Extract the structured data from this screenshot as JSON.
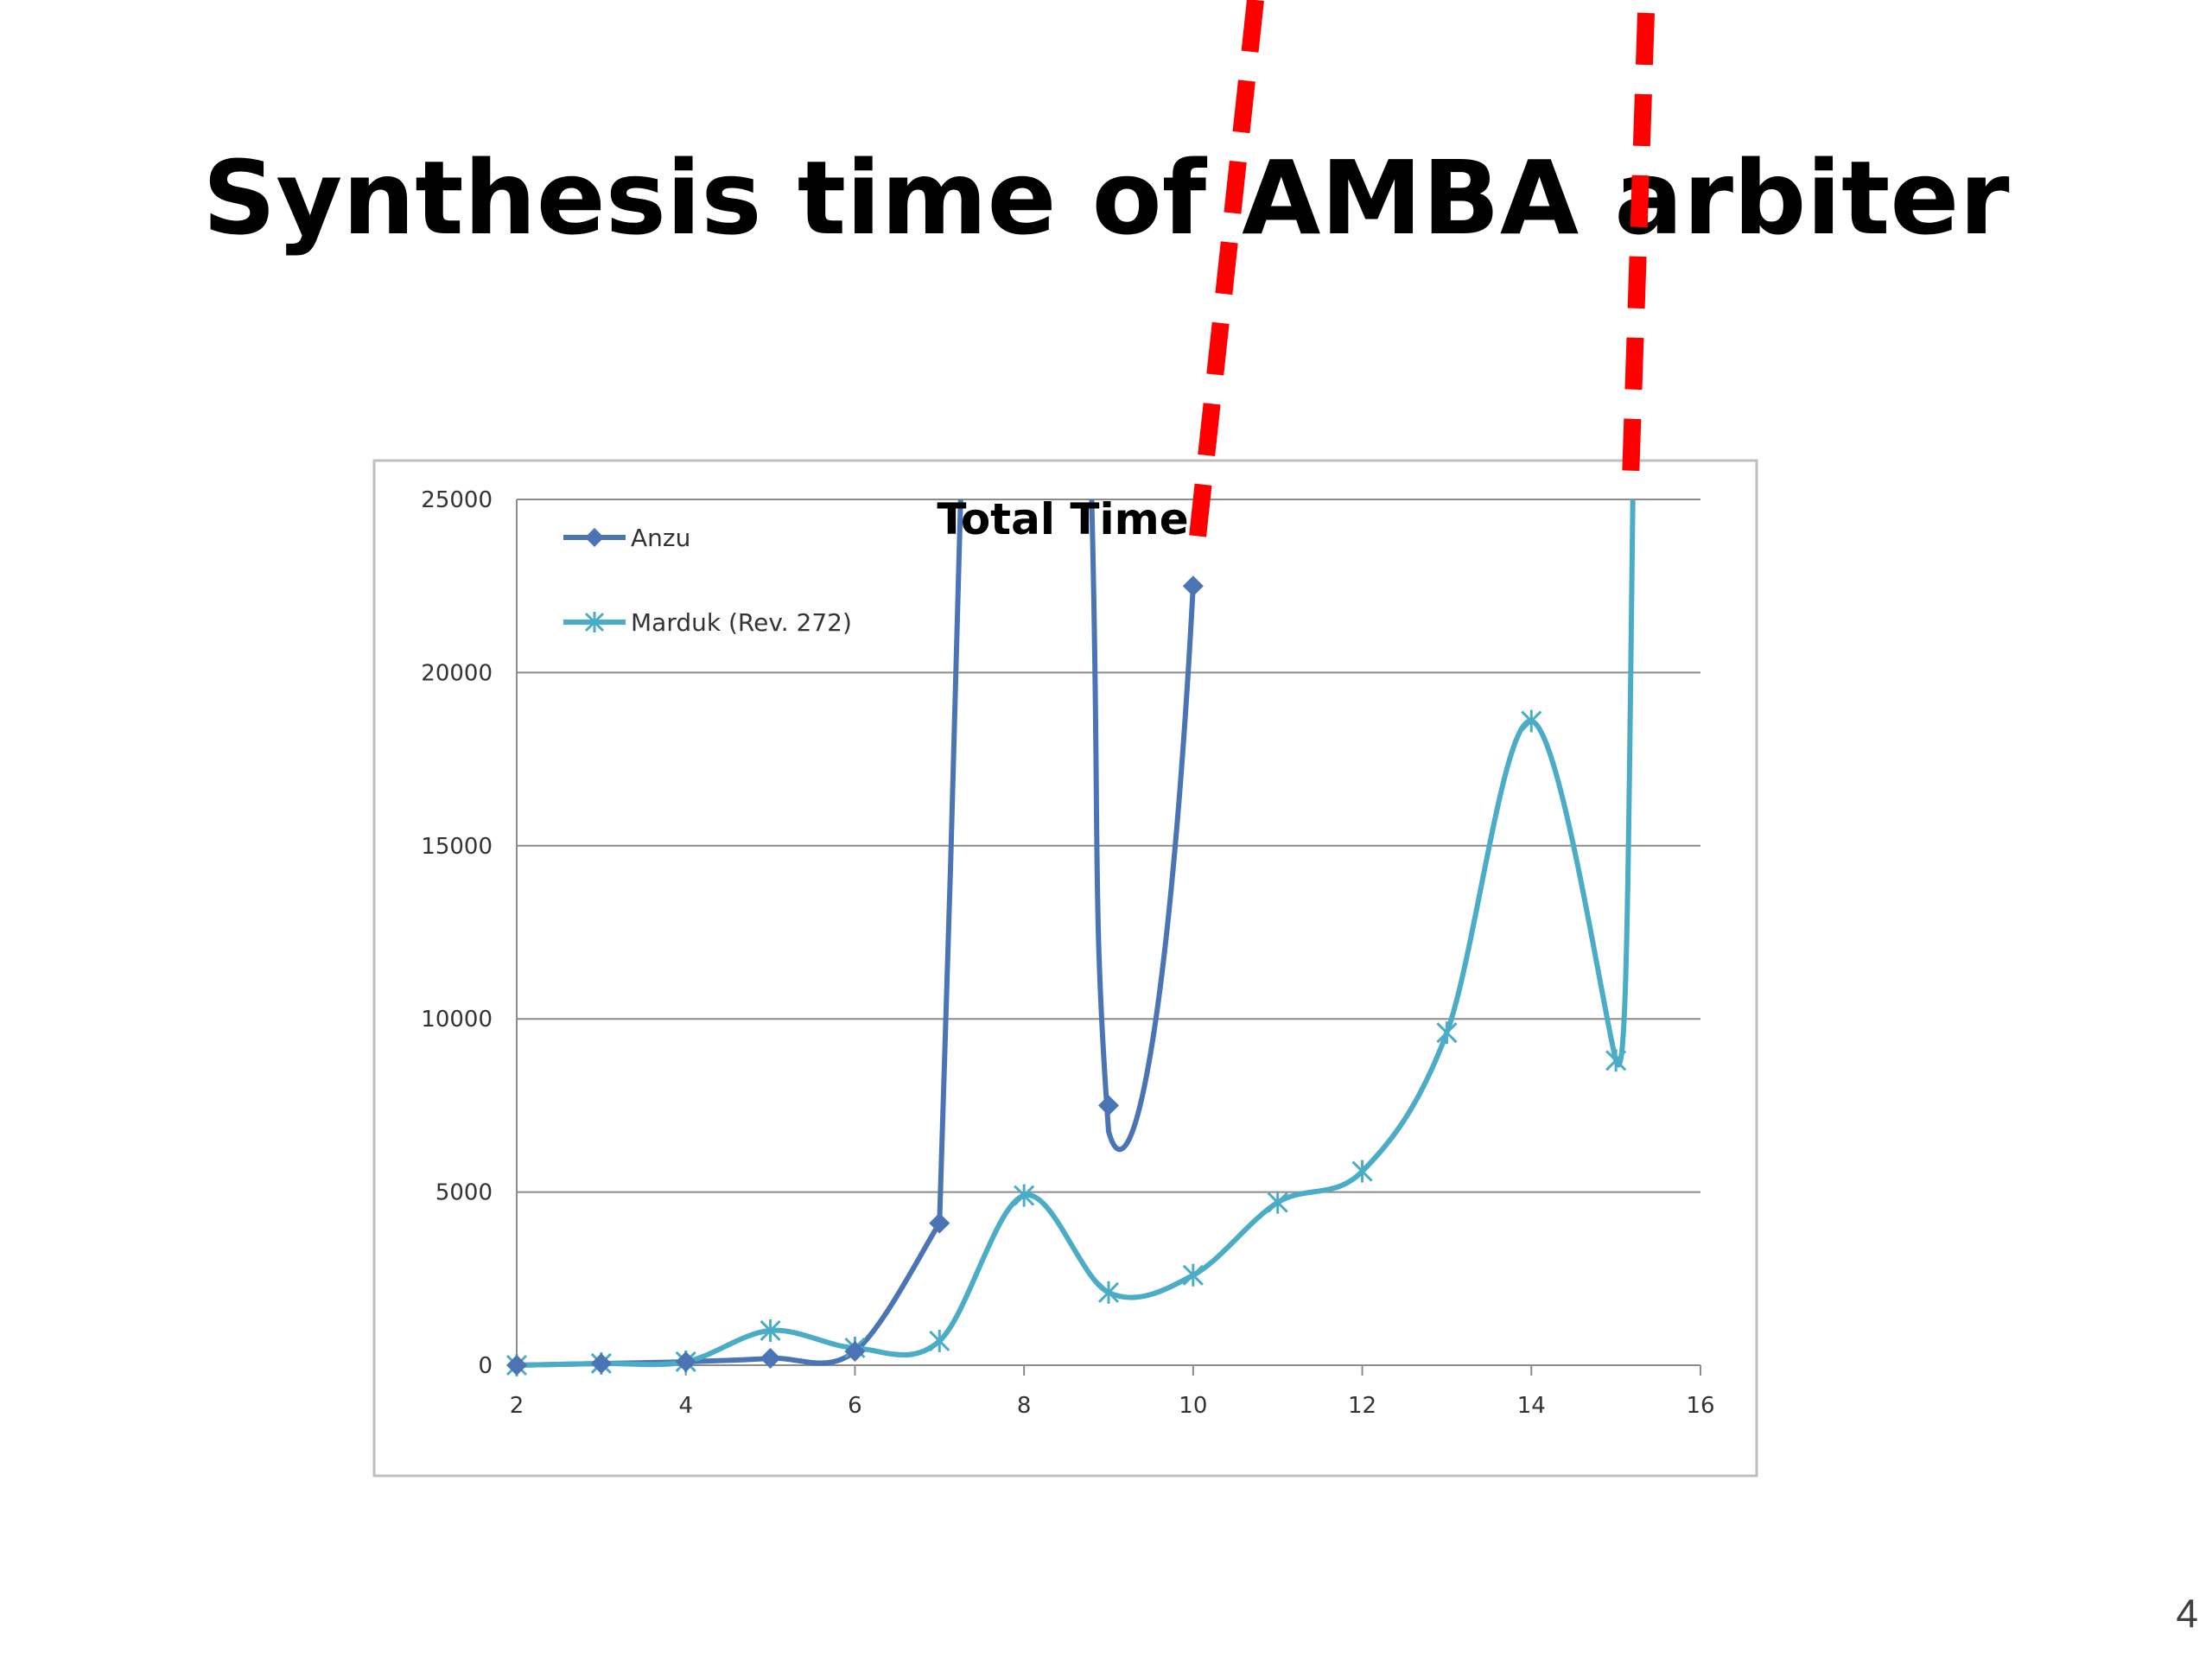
{
  "slide": {
    "title": "Synthesis time of AMBA arbiter",
    "page_number": "4"
  },
  "chart_data": {
    "type": "line",
    "title": "Total Time",
    "xlim": [
      2,
      16
    ],
    "ylim": [
      0,
      25000
    ],
    "x_ticks": [
      2,
      4,
      6,
      8,
      10,
      12,
      14,
      16
    ],
    "y_ticks": [
      0,
      5000,
      10000,
      15000,
      20000,
      25000
    ],
    "grid": "horizontal",
    "legend_position": "top-left",
    "series": [
      {
        "name": "Anzu",
        "color": "#4a74b4",
        "marker": "diamond",
        "x": [
          2,
          3,
          4,
          5,
          6,
          7,
          9,
          10
        ],
        "y": [
          0,
          50,
          100,
          200,
          400,
          4100,
          7500,
          22500
        ],
        "x_offscale": [
          7.25,
          8.8
        ]
      },
      {
        "name": "Marduk (Rev. 272)",
        "color": "#4bacc6",
        "marker": "asterisk",
        "x": [
          2,
          3,
          4,
          5,
          6,
          7,
          8,
          9,
          10,
          11,
          12,
          13,
          14,
          15
        ],
        "y": [
          0,
          50,
          100,
          1000,
          500,
          700,
          4900,
          2100,
          2600,
          4700,
          5600,
          9600,
          18600,
          8800
        ],
        "x_offscale": [
          15.2
        ]
      }
    ],
    "annotations": [
      {
        "type": "dashed-line",
        "color": "#ff0000"
      },
      {
        "type": "dashed-line",
        "color": "#ff0000"
      }
    ]
  }
}
